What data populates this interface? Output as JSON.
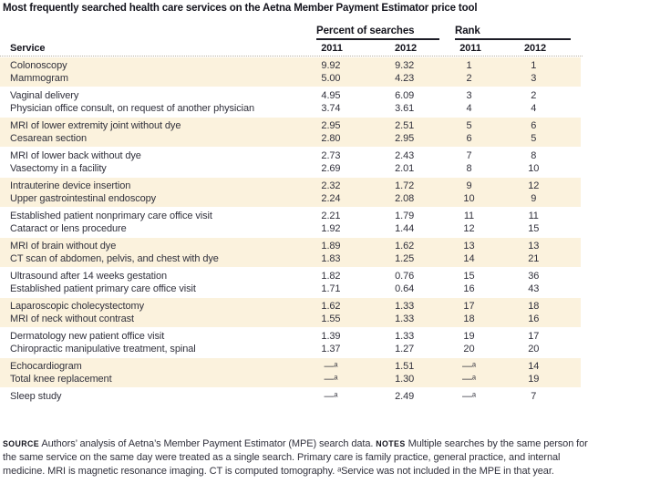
{
  "title": "Most frequently searched health care services on the Aetna Member Payment Estimator price tool",
  "table": {
    "col_groups": [
      {
        "label": "Percent of searches"
      },
      {
        "label": "Rank"
      }
    ],
    "service_header": "Service",
    "year_headers": [
      "2011",
      "2012",
      "2011",
      "2012"
    ],
    "groups": [
      {
        "shaded": true,
        "rows": [
          {
            "service": "Colonoscopy",
            "pct_2011": "9.92",
            "pct_2012": "9.32",
            "rank_2011": "1",
            "rank_2012": "1"
          },
          {
            "service": "Mammogram",
            "pct_2011": "5.00",
            "pct_2012": "4.23",
            "rank_2011": "2",
            "rank_2012": "3"
          }
        ]
      },
      {
        "shaded": false,
        "rows": [
          {
            "service": "Vaginal delivery",
            "pct_2011": "4.95",
            "pct_2012": "6.09",
            "rank_2011": "3",
            "rank_2012": "2"
          },
          {
            "service": "Physician office consult, on request of another physician",
            "pct_2011": "3.74",
            "pct_2012": "3.61",
            "rank_2011": "4",
            "rank_2012": "4"
          }
        ]
      },
      {
        "shaded": true,
        "rows": [
          {
            "service": "MRI of lower extremity joint without dye",
            "pct_2011": "2.95",
            "pct_2012": "2.51",
            "rank_2011": "5",
            "rank_2012": "6"
          },
          {
            "service": "Cesarean section",
            "pct_2011": "2.80",
            "pct_2012": "2.95",
            "rank_2011": "6",
            "rank_2012": "5"
          }
        ]
      },
      {
        "shaded": false,
        "rows": [
          {
            "service": "MRI of lower back without dye",
            "pct_2011": "2.73",
            "pct_2012": "2.43",
            "rank_2011": "7",
            "rank_2012": "8"
          },
          {
            "service": "Vasectomy in a facility",
            "pct_2011": "2.69",
            "pct_2012": "2.01",
            "rank_2011": "8",
            "rank_2012": "10"
          }
        ]
      },
      {
        "shaded": true,
        "rows": [
          {
            "service": "Intrauterine device insertion",
            "pct_2011": "2.32",
            "pct_2012": "1.72",
            "rank_2011": "9",
            "rank_2012": "12"
          },
          {
            "service": "Upper gastrointestinal endoscopy",
            "pct_2011": "2.24",
            "pct_2012": "2.08",
            "rank_2011": "10",
            "rank_2012": "9"
          }
        ]
      },
      {
        "shaded": false,
        "rows": [
          {
            "service": "Established patient nonprimary care office visit",
            "pct_2011": "2.21",
            "pct_2012": "1.79",
            "rank_2011": "11",
            "rank_2012": "11"
          },
          {
            "service": "Cataract or lens procedure",
            "pct_2011": "1.92",
            "pct_2012": "1.44",
            "rank_2011": "12",
            "rank_2012": "15"
          }
        ]
      },
      {
        "shaded": true,
        "rows": [
          {
            "service": "MRI of brain without dye",
            "pct_2011": "1.89",
            "pct_2012": "1.62",
            "rank_2011": "13",
            "rank_2012": "13"
          },
          {
            "service": "CT scan of abdomen, pelvis, and chest with dye",
            "pct_2011": "1.83",
            "pct_2012": "1.25",
            "rank_2011": "14",
            "rank_2012": "21"
          }
        ]
      },
      {
        "shaded": false,
        "rows": [
          {
            "service": "Ultrasound after 14 weeks gestation",
            "pct_2011": "1.82",
            "pct_2012": "0.76",
            "rank_2011": "15",
            "rank_2012": "36"
          },
          {
            "service": "Established patient primary care office visit",
            "pct_2011": "1.71",
            "pct_2012": "0.64",
            "rank_2011": "16",
            "rank_2012": "43"
          }
        ]
      },
      {
        "shaded": true,
        "rows": [
          {
            "service": "Laparoscopic cholecystectomy",
            "pct_2011": "1.62",
            "pct_2012": "1.33",
            "rank_2011": "17",
            "rank_2012": "18"
          },
          {
            "service": "MRI of neck without contrast",
            "pct_2011": "1.55",
            "pct_2012": "1.33",
            "rank_2011": "18",
            "rank_2012": "16"
          }
        ]
      },
      {
        "shaded": false,
        "rows": [
          {
            "service": "Dermatology new patient office visit",
            "pct_2011": "1.39",
            "pct_2012": "1.33",
            "rank_2011": "19",
            "rank_2012": "17"
          },
          {
            "service": "Chiropractic manipulative treatment, spinal",
            "pct_2011": "1.37",
            "pct_2012": "1.27",
            "rank_2011": "20",
            "rank_2012": "20"
          }
        ]
      },
      {
        "shaded": true,
        "rows": [
          {
            "service": "Echocardiogram",
            "pct_2011": "—ᵃ",
            "pct_2012": "1.51",
            "rank_2011": "—ᵃ",
            "rank_2012": "14"
          },
          {
            "service": "Total knee replacement",
            "pct_2011": "—ᵃ",
            "pct_2012": "1.30",
            "rank_2011": "—ᵃ",
            "rank_2012": "19"
          }
        ]
      },
      {
        "shaded": false,
        "rows": [
          {
            "service": "Sleep study",
            "pct_2011": "—ᵃ",
            "pct_2012": "2.49",
            "rank_2011": "—ᵃ",
            "rank_2012": "7"
          }
        ]
      }
    ]
  },
  "footnote": {
    "source_label": "SOURCE",
    "source_text": "Authors’ analysis of Aetna’s Member Payment Estimator (MPE) search data.",
    "notes_label": "NOTES",
    "notes_text": "Multiple searches by the same person for the same service on the same day were treated as a single search. Primary care is family practice, general practice, and internal medicine. MRI is magnetic resonance imaging. CT is computed tomography. ᵃService was not included in the MPE in that year."
  },
  "colors": {
    "band_shaded": "#fbf2dd",
    "text": "#31313c",
    "heading_text": "#14141d",
    "rule": "#1c1c26",
    "dotted_rule": "#b9b1a1"
  }
}
